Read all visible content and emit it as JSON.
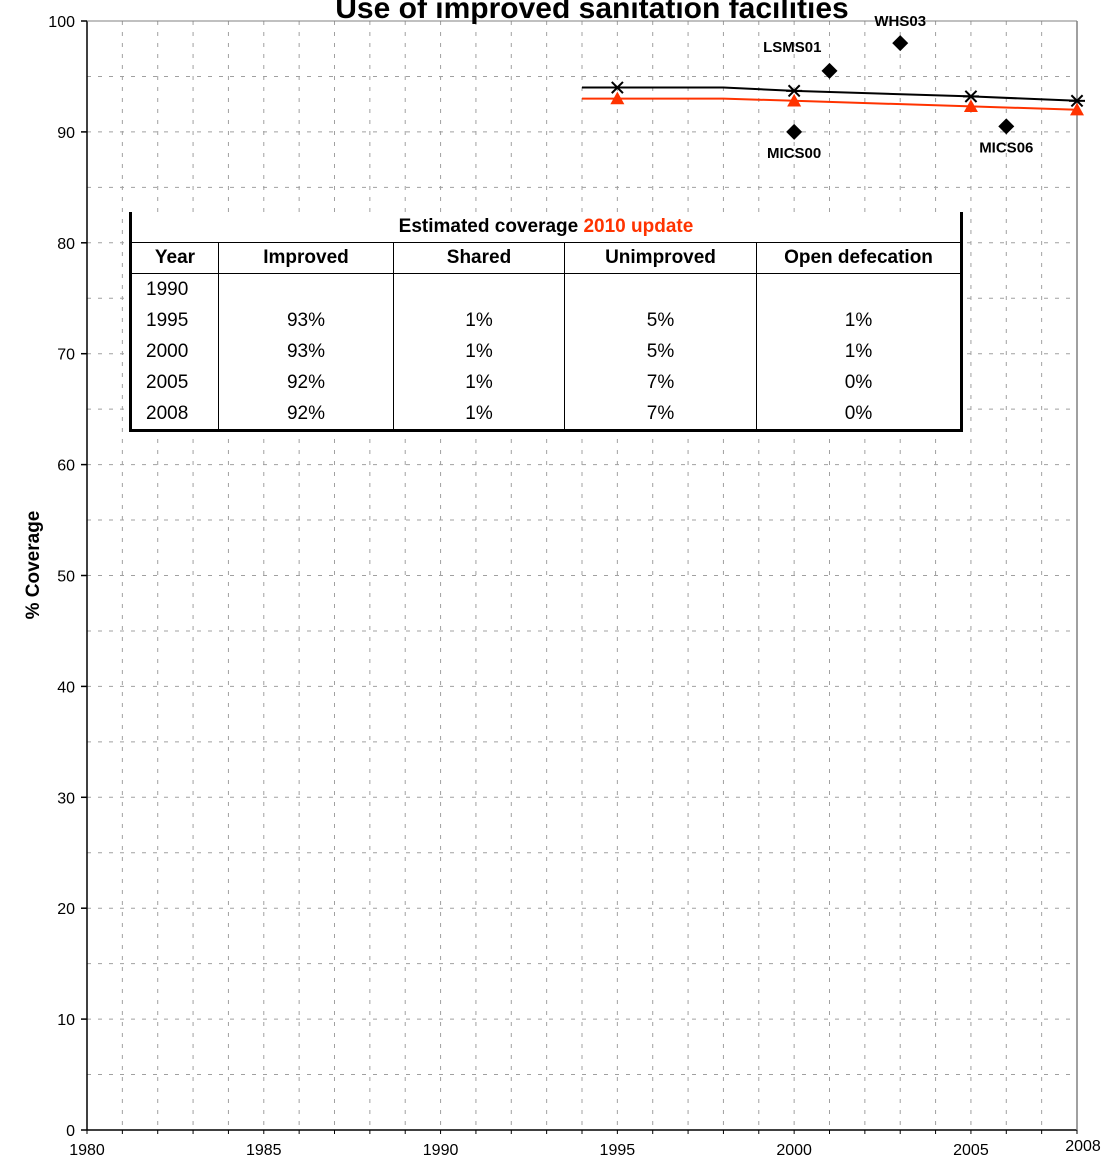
{
  "chart_data": {
    "type": "line",
    "title": "Use of improved sanitation facilities",
    "xlabel": "",
    "ylabel": "% Coverage",
    "xlim": [
      1980,
      2008
    ],
    "ylim": [
      0,
      100
    ],
    "x_ticks": [
      1980,
      1985,
      1990,
      1995,
      2000,
      2005,
      2008
    ],
    "y_ticks": [
      0,
      10,
      20,
      30,
      40,
      50,
      60,
      70,
      80,
      90,
      100
    ],
    "grid": true,
    "series": [
      {
        "color": "#000000",
        "marker": "asterisk",
        "points": [
          [
            1994,
            94
          ],
          [
            1995,
            94
          ],
          [
            1998,
            94
          ],
          [
            2000,
            93.7
          ],
          [
            2005,
            93.2
          ],
          [
            2008,
            92.8
          ]
        ]
      },
      {
        "color": "#ff3300",
        "marker": "triangle",
        "points": [
          [
            1994,
            93
          ],
          [
            1995,
            93
          ],
          [
            1998,
            93
          ],
          [
            2000,
            92.8
          ],
          [
            2005,
            92.3
          ],
          [
            2008,
            92
          ]
        ]
      }
    ],
    "surveys": [
      {
        "label": "MICS00",
        "x": 2000,
        "y": 90,
        "label_pos": "below"
      },
      {
        "label": "LSMS01",
        "x": 2001,
        "y": 95.5,
        "label_pos": "above-left"
      },
      {
        "label": "WHS03",
        "x": 2003,
        "y": 98,
        "label_pos": "above"
      },
      {
        "label": "MICS06",
        "x": 2006,
        "y": 90.5,
        "label_pos": "below"
      }
    ]
  },
  "coverage_table": {
    "title_prefix": "Estimated coverage ",
    "title_highlight": "2010 update",
    "headers": [
      "Year",
      "Improved",
      "Shared",
      "Unimproved",
      "Open defecation"
    ],
    "rows": [
      [
        "1990",
        "",
        "",
        "",
        ""
      ],
      [
        "1995",
        "93%",
        "1%",
        "5%",
        "1%"
      ],
      [
        "2000",
        "93%",
        "1%",
        "5%",
        "1%"
      ],
      [
        "2005",
        "92%",
        "1%",
        "7%",
        "0%"
      ],
      [
        "2008",
        "92%",
        "1%",
        "7%",
        "0%"
      ]
    ]
  }
}
